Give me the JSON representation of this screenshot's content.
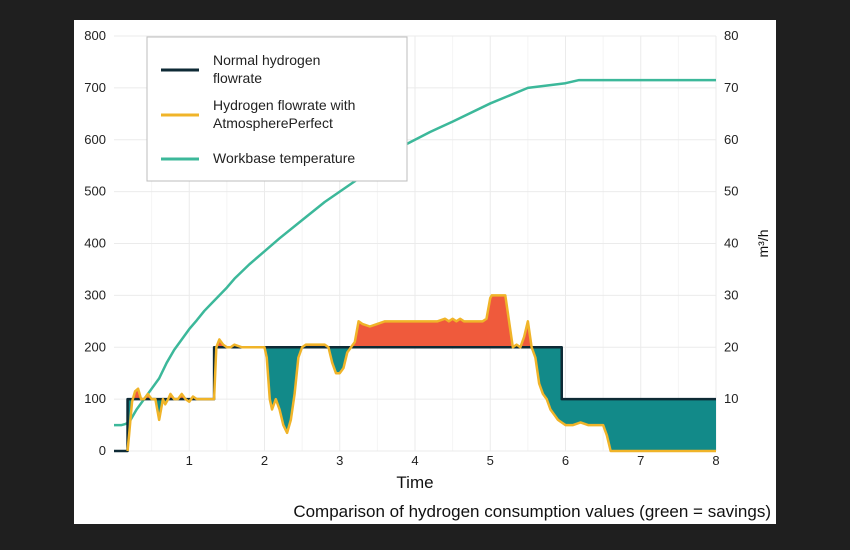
{
  "chart_data": {
    "type": "line",
    "title": "",
    "caption": "Comparison of hydrogen consumption values (green = savings)",
    "xlabel": "Time",
    "ylabel_left": "",
    "ylabel_right": "m³/h",
    "xlim": [
      0,
      8
    ],
    "ylim_left": [
      0,
      800
    ],
    "ylim_right": [
      0,
      80
    ],
    "x_ticks": [
      "1",
      "2",
      "3",
      "4",
      "5",
      "6",
      "7",
      "8"
    ],
    "y_left_ticks": [
      "0",
      "100",
      "200",
      "300",
      "400",
      "500",
      "600",
      "700",
      "800"
    ],
    "y_right_ticks": [
      "10",
      "20",
      "30",
      "40",
      "50",
      "60",
      "70",
      "80"
    ],
    "grid": true,
    "legend_position": "top-left",
    "colors": {
      "normal": "#0e2a35",
      "atmosphere": "#f0b429",
      "temperature": "#3cb89a",
      "excess_fill": "#ef5a3c",
      "savings_fill": "#128a89"
    },
    "series": [
      {
        "name": "Normal hydrogen flowrate",
        "key": "normal",
        "x": [
          0,
          0.18,
          0.18,
          1.33,
          1.33,
          5.95,
          5.95,
          8
        ],
        "y": [
          0,
          0,
          100,
          100,
          200,
          200,
          100,
          100
        ]
      },
      {
        "name": "Hydrogen flowrate with AtmospherePerfect",
        "key": "atmosphere",
        "x": [
          0.18,
          0.2,
          0.24,
          0.28,
          0.32,
          0.36,
          0.4,
          0.45,
          0.5,
          0.55,
          0.6,
          0.65,
          0.68,
          0.72,
          0.75,
          0.8,
          0.85,
          0.9,
          0.95,
          1.0,
          1.05,
          1.1,
          1.15,
          1.2,
          1.25,
          1.28,
          1.33,
          1.36,
          1.4,
          1.45,
          1.5,
          1.55,
          1.6,
          1.7,
          1.8,
          1.9,
          2.0,
          2.03,
          2.07,
          2.1,
          2.15,
          2.2,
          2.25,
          2.3,
          2.35,
          2.4,
          2.45,
          2.5,
          2.55,
          2.6,
          2.7,
          2.8,
          2.85,
          2.9,
          2.95,
          3.0,
          3.05,
          3.1,
          3.15,
          3.2,
          3.25,
          3.3,
          3.4,
          3.5,
          3.6,
          3.7,
          3.8,
          3.9,
          4.0,
          4.1,
          4.2,
          4.3,
          4.4,
          4.45,
          4.5,
          4.55,
          4.6,
          4.65,
          4.7,
          4.8,
          4.9,
          4.95,
          5.0,
          5.02,
          5.1,
          5.2,
          5.25,
          5.3,
          5.35,
          5.4,
          5.45,
          5.5,
          5.55,
          5.6,
          5.65,
          5.7,
          5.75,
          5.8,
          5.85,
          5.9,
          5.95,
          6.0,
          6.1,
          6.2,
          6.3,
          6.4,
          6.5,
          6.55,
          6.6,
          8.0
        ],
        "y": [
          0,
          30,
          95,
          115,
          120,
          100,
          100,
          110,
          100,
          100,
          60,
          100,
          90,
          100,
          110,
          100,
          100,
          110,
          100,
          95,
          105,
          100,
          100,
          100,
          100,
          100,
          100,
          200,
          215,
          205,
          200,
          200,
          205,
          200,
          200,
          200,
          200,
          180,
          100,
          80,
          100,
          80,
          50,
          35,
          60,
          110,
          180,
          200,
          205,
          205,
          205,
          205,
          200,
          170,
          150,
          150,
          160,
          190,
          200,
          210,
          250,
          245,
          240,
          245,
          250,
          250,
          250,
          250,
          250,
          250,
          250,
          250,
          255,
          250,
          255,
          250,
          255,
          250,
          250,
          250,
          250,
          255,
          295,
          300,
          300,
          300,
          250,
          200,
          205,
          200,
          220,
          250,
          200,
          180,
          130,
          110,
          100,
          80,
          70,
          60,
          55,
          50,
          50,
          55,
          50,
          50,
          50,
          30,
          0,
          0
        ]
      },
      {
        "name": "Workbase temperature",
        "key": "temperature",
        "x": [
          0,
          0.1,
          0.15,
          0.2,
          0.3,
          0.45,
          0.6,
          0.7,
          0.8,
          0.9,
          1.0,
          1.1,
          1.2,
          1.3,
          1.4,
          1.5,
          1.6,
          1.8,
          2.0,
          2.2,
          2.5,
          2.8,
          3.0,
          3.2,
          3.5,
          3.8,
          4.0,
          4.2,
          4.5,
          5.0,
          5.5,
          6.0,
          6.18,
          8.0
        ],
        "y": [
          5,
          5,
          5.2,
          5.5,
          8,
          11,
          14,
          17,
          19.5,
          21.5,
          23.5,
          25.2,
          27,
          28.5,
          30,
          31.5,
          33.2,
          36,
          38.5,
          41,
          44.5,
          48,
          50,
          52,
          55.5,
          58.5,
          60,
          61.5,
          63.5,
          67,
          70,
          70.9,
          71.5,
          71.5
        ]
      }
    ]
  },
  "legend": [
    {
      "key": "normal",
      "label_lines": [
        "Normal hydrogen",
        "flowrate"
      ]
    },
    {
      "key": "atmosphere",
      "label_lines": [
        "Hydrogen flowrate with",
        "AtmospherePerfect"
      ]
    },
    {
      "key": "temperature",
      "label_lines": [
        "Workbase temperature"
      ]
    }
  ]
}
